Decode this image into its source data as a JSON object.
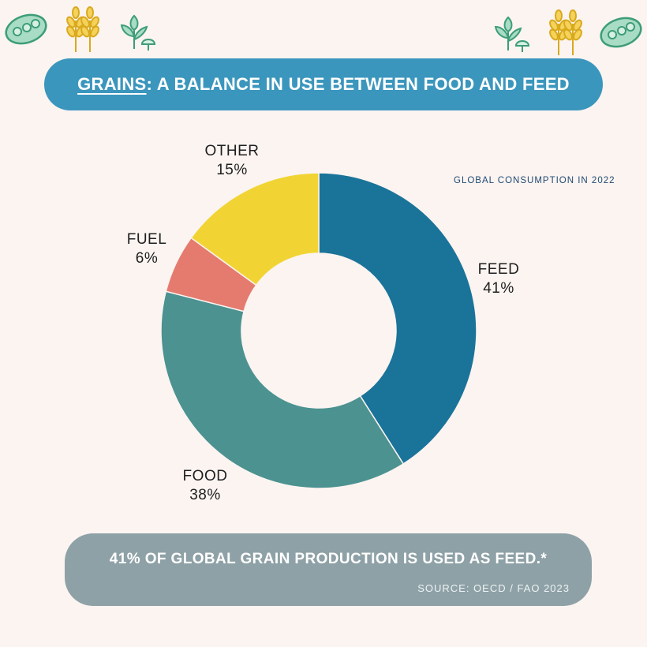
{
  "header": {
    "title_highlight": "GRAINS",
    "title_rest": ": A BALANCE IN USE BETWEEN FOOD AND FEED"
  },
  "decorations": [
    "beans-icon",
    "wheat-icon",
    "plant-icon"
  ],
  "chart_data": {
    "type": "pie",
    "donut": true,
    "title": "GRAINS: A BALANCE IN USE BETWEEN FOOD AND FEED",
    "subtitle": "GLOBAL CONSUMPTION IN 2022",
    "categories": [
      "FEED",
      "FOOD",
      "FUEL",
      "OTHER"
    ],
    "values": [
      41,
      38,
      6,
      15
    ],
    "value_labels": [
      "41%",
      "38%",
      "6%",
      "15%"
    ],
    "colors": [
      "#1a7399",
      "#4b9290",
      "#e57b6e",
      "#f1d434"
    ],
    "legend": "none"
  },
  "footer": {
    "main": "41% OF GLOBAL GRAIN PRODUCTION IS USED AS FEED.*",
    "source": "SOURCE: OECD / FAO 2023"
  }
}
